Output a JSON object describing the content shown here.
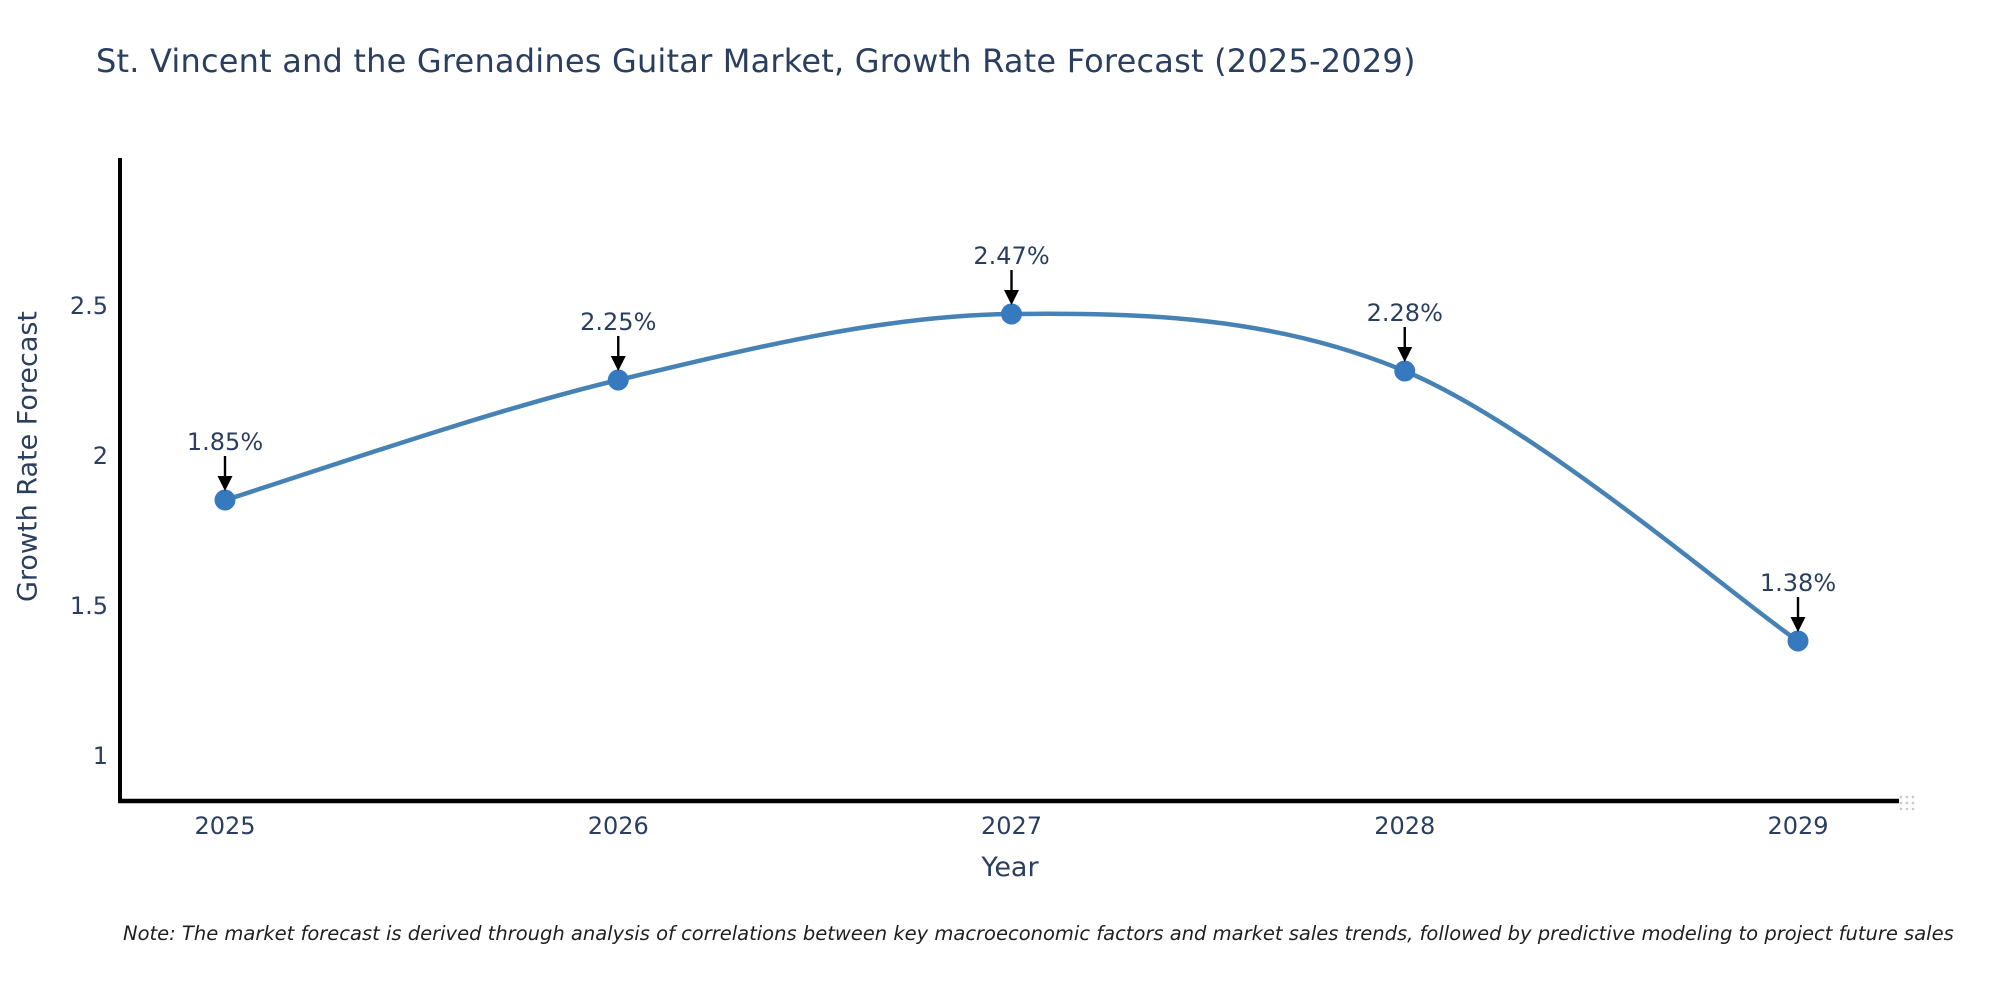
{
  "title": "St. Vincent and the Grenadines Guitar Market, Growth Rate Forecast (2025-2029)",
  "note": "Note: The market forecast is derived through analysis of correlations between key macroeconomic factors and market sales trends, followed by predictive modeling to project future sales",
  "chart_data": {
    "type": "line",
    "title": "St. Vincent and the Grenadines Guitar Market, Growth Rate Forecast (2025-2029)",
    "x": [
      "2025",
      "2026",
      "2027",
      "2028",
      "2029"
    ],
    "values": [
      1.85,
      2.25,
      2.47,
      2.28,
      1.38
    ],
    "point_labels": [
      "1.85%",
      "2.25%",
      "2.47%",
      "2.28%",
      "1.38%"
    ],
    "xlabel": "Year",
    "ylabel": "Growth Rate Forecast",
    "yticks": [
      "1",
      "1.5",
      "2",
      "2.5"
    ],
    "ytick_values": [
      1,
      1.5,
      2,
      2.5
    ],
    "ylim": [
      0.847,
      2.99
    ],
    "grid": false,
    "legend": false,
    "line_shape": "spline",
    "colors": {
      "line": "#4682b4",
      "marker": "#3779bf",
      "axis": "#000000",
      "tick_text": "#2a3f5f",
      "annotation_text": "#2a3f5f",
      "annotation_arrow": "#000000"
    }
  }
}
